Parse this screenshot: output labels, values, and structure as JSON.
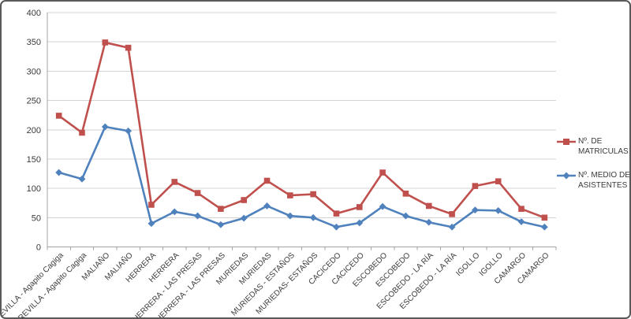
{
  "chart": {
    "background": "#ffffff",
    "frame_border_color": "#595959",
    "grid_color": "#d3d3d3",
    "axis_color": "#a3a3a3",
    "text_color": "#3a3a3a"
  },
  "chart_data": {
    "type": "line",
    "title": "",
    "xlabel": "",
    "ylabel": "",
    "ylim": [
      0,
      400
    ],
    "y_ticks": [
      0,
      50,
      100,
      150,
      200,
      250,
      300,
      350,
      400
    ],
    "grid": "horizontal",
    "legend_position": "right",
    "categories": [
      "REVILLA - Agapito Cagiga",
      "REVILLA - Agapito Cagiga",
      "MALIAÑO",
      "MALIAÑO",
      "HERRERA",
      "HERRERA",
      "HERRERA - LAS PRESAS",
      "HERRERA - LAS PRESAS",
      "MURIEDAS",
      "MURIEDAS",
      "MURIEDAS - ESTAÑOS",
      "MURIEDAS- ESTAÑOS",
      "CACICEDO",
      "CACICEDO",
      "ESCOBEDO",
      "ESCOBEDO",
      "ESCOBEDO - LA RÍA",
      "ESCOBEDO - LA RÍA",
      "IGOLLO",
      "IGOLLO",
      "CAMARGO",
      "CAMARGO"
    ],
    "series": [
      {
        "name": "Nº. DE MATRICULAS",
        "color": "#C0504D",
        "marker": "square",
        "values": [
          224,
          195,
          349,
          340,
          72,
          111,
          92,
          65,
          80,
          113,
          88,
          90,
          57,
          68,
          127,
          91,
          70,
          56,
          104,
          112,
          65,
          50
        ]
      },
      {
        "name": "Nº. MEDIO DE ASISTENTES",
        "color": "#4F81BD",
        "marker": "diamond",
        "values": [
          127,
          116,
          205,
          198,
          40,
          60,
          53,
          38,
          49,
          70,
          53,
          50,
          34,
          41,
          69,
          53,
          42,
          34,
          63,
          62,
          43,
          34
        ]
      }
    ]
  }
}
